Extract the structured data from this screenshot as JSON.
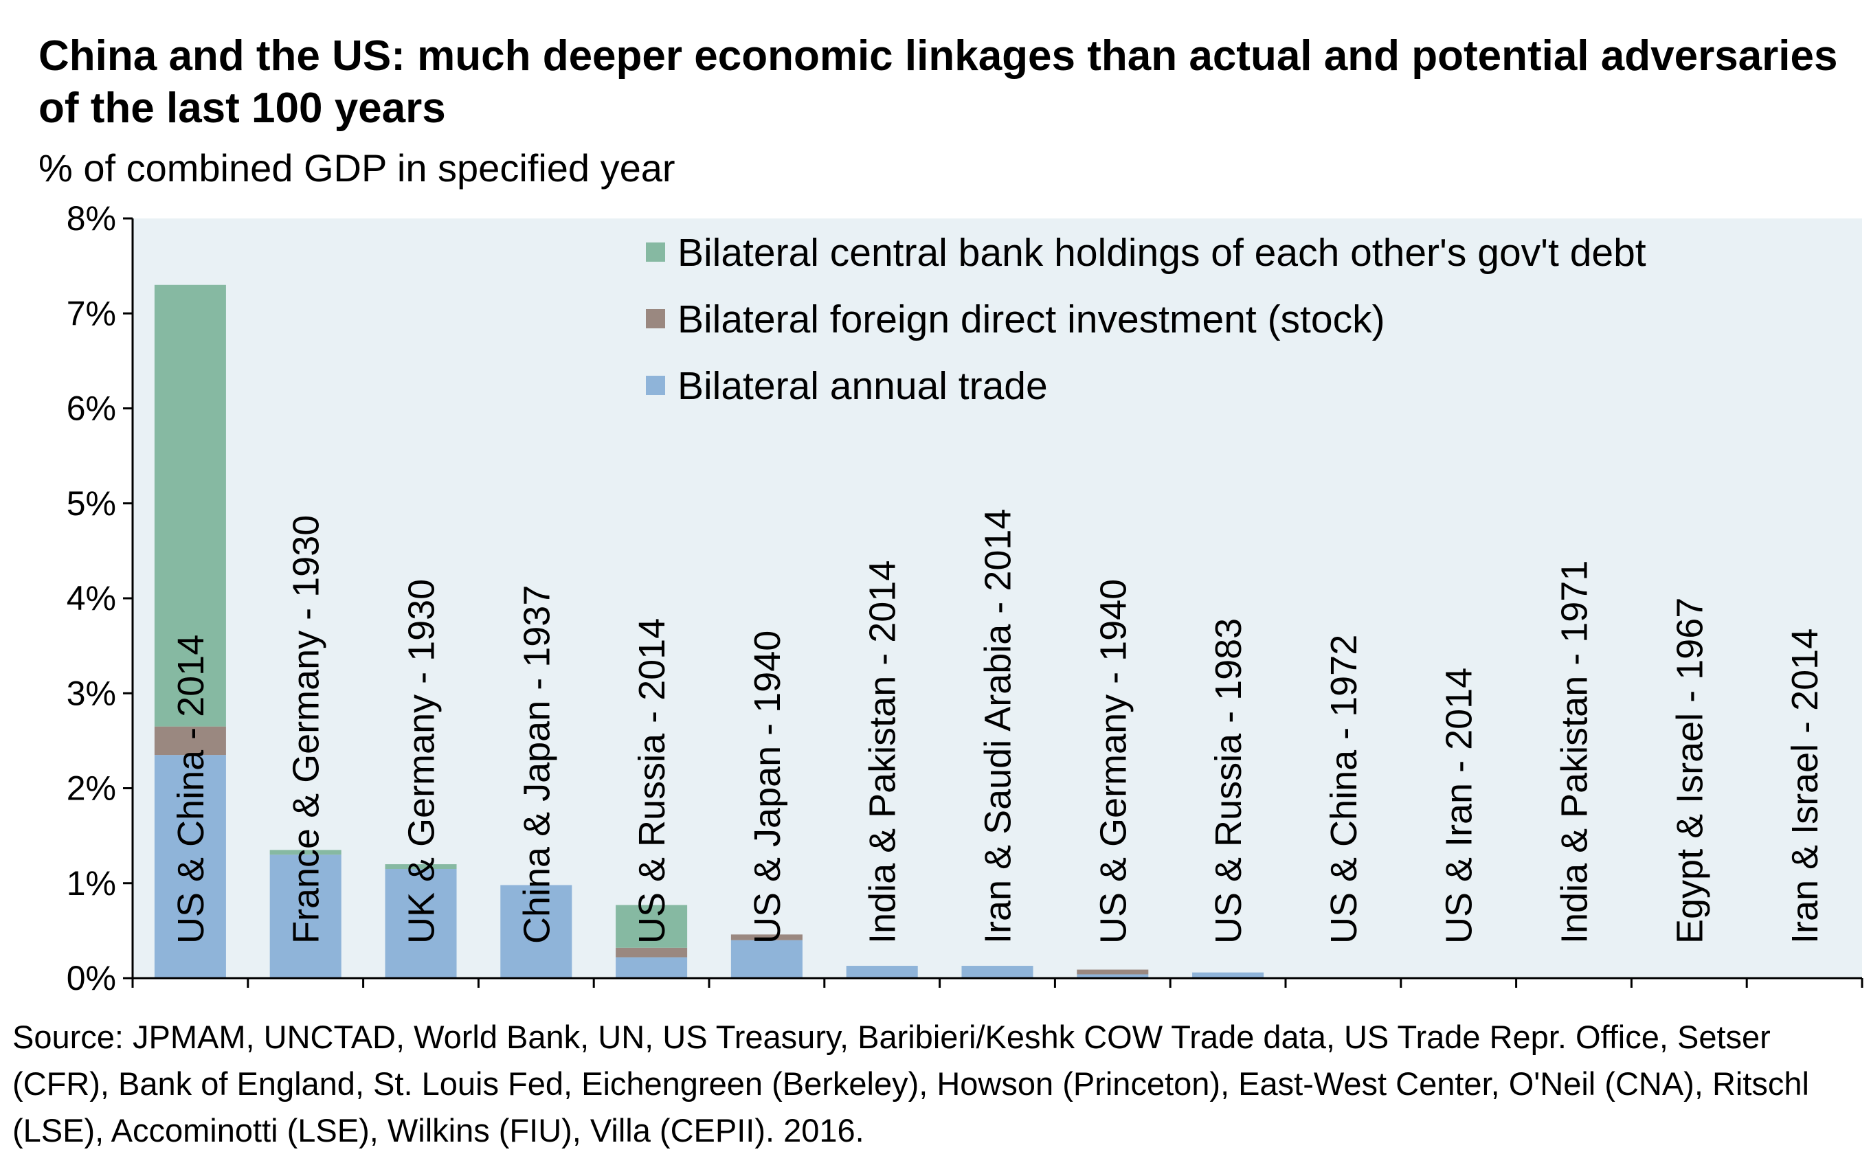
{
  "chart_data": {
    "type": "bar",
    "stacked": true,
    "title": "China and the US: much deeper economic linkages than actual and potential adversaries of the last 100 years",
    "subtitle": "% of combined GDP in specified year",
    "categories": [
      "US & China - 2014",
      "France & Germany - 1930",
      "UK & Germany - 1930",
      "China & Japan - 1937",
      "US & Russia - 2014",
      "US & Japan - 1940",
      "India & Pakistan - 2014",
      "Iran & Saudi Arabia - 2014",
      "US & Germany - 1940",
      "US & Russia - 1983",
      "US & China - 1972",
      "US & Iran - 2014",
      "India & Pakistan - 1971",
      "Egypt & Israel - 1967",
      "Iran & Israel - 2014"
    ],
    "series": [
      {
        "name": "Bilateral annual trade",
        "color": "#8fb4d9",
        "values": [
          2.35,
          1.3,
          1.15,
          0.98,
          0.22,
          0.4,
          0.13,
          0.13,
          0.04,
          0.06,
          0.0,
          0.0,
          0.0,
          0.0,
          0.0
        ]
      },
      {
        "name": "Bilateral foreign direct investment (stock)",
        "color": "#9a8880",
        "values": [
          0.3,
          0.0,
          0.0,
          0.0,
          0.1,
          0.06,
          0.0,
          0.0,
          0.05,
          0.0,
          0.0,
          0.0,
          0.0,
          0.0,
          0.0
        ]
      },
      {
        "name": "Bilateral central bank holdings of each other's gov't debt",
        "color": "#86b9a2",
        "values": [
          4.65,
          0.05,
          0.05,
          0.0,
          0.45,
          0.0,
          0.0,
          0.0,
          0.0,
          0.0,
          0.0,
          0.0,
          0.0,
          0.0,
          0.0
        ]
      }
    ],
    "legend_order": [
      "Bilateral central bank holdings of each other's gov't debt",
      "Bilateral foreign direct investment (stock)",
      "Bilateral annual trade"
    ],
    "legend_position": "top-right",
    "ylim": [
      0,
      8
    ],
    "yticks": [
      "0%",
      "1%",
      "2%",
      "3%",
      "4%",
      "5%",
      "6%",
      "7%",
      "8%"
    ],
    "grid": false,
    "plot_background": "#e9f1f5",
    "source": "Source: JPMAM, UNCTAD, World Bank, UN, US Treasury, Baribieri/Keshk COW Trade data, US Trade Repr. Office, Setser (CFR), Bank of England, St. Louis Fed, Eichengreen (Berkeley), Howson (Princeton), East-West Center, O'Neil (CNA), Ritschl (LSE), Accominotti (LSE), Wilkins (FIU), Villa (CEPII). 2016."
  }
}
